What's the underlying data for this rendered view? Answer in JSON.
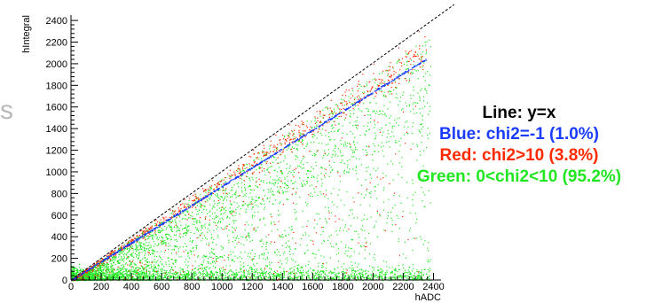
{
  "chart_data": {
    "type": "scatter",
    "xlabel": "hADC",
    "ylabel": "hIntegral",
    "xlim": [
      0,
      2450
    ],
    "ylim": [
      0,
      2450
    ],
    "x_ticks": [
      0,
      200,
      400,
      600,
      800,
      1000,
      1200,
      1400,
      1600,
      1800,
      2000,
      2200,
      2400
    ],
    "y_ticks": [
      0,
      200,
      400,
      600,
      800,
      1000,
      1200,
      1400,
      1600,
      1800,
      2000,
      2200,
      2400
    ],
    "grid": false,
    "reference_line": {
      "label": "Line: y=x",
      "slope": 1,
      "intercept": 0,
      "style": "dashed",
      "color": "#000000"
    },
    "series": [
      {
        "name": "Blue: chi2=-1 (1.0%)",
        "color": "#1a3cff",
        "relation": "y ≈ 0.87x",
        "x_range": [
          0,
          2350
        ]
      },
      {
        "name": "Red: chi2>10 (3.8%)",
        "color": "#ff2a00",
        "relation": "y ≈ 0.95x (scattered)",
        "x_range": [
          0,
          2350
        ]
      },
      {
        "name": "Green: 0<chi2<10 (95.2%)",
        "color": "#22e622",
        "relation": "0 < y < 0.95x, dense below 400",
        "x_range": [
          0,
          2350
        ]
      }
    ]
  },
  "legend": {
    "lines": [
      {
        "text": "Line: y=x",
        "color": "#000000"
      },
      {
        "text": "Blue: chi2=-1 (1.0%)",
        "color": "#1a3cff"
      },
      {
        "text": "Red: chi2>10 (3.8%)",
        "color": "#ff2a00"
      },
      {
        "text": "Green: 0<chi2<10 (95.2%)",
        "color": "#22e622"
      }
    ]
  },
  "side_fragment": "s"
}
